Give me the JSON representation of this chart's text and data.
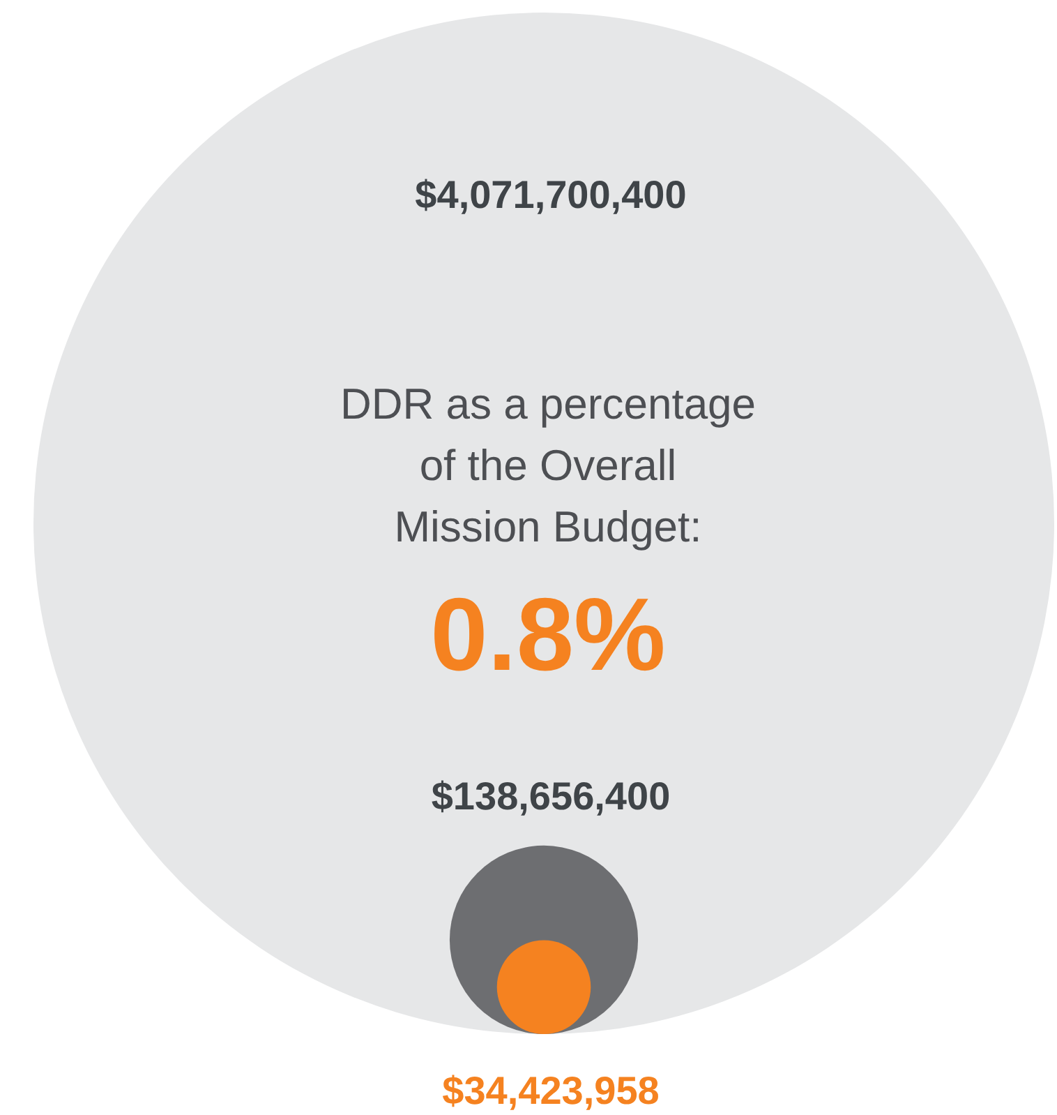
{
  "chart_data": {
    "type": "other",
    "categories": [
      null,
      null,
      null
    ],
    "values": [
      4071700400,
      138656400,
      34423958
    ],
    "colors": [
      "#e6e7e8",
      "#6d6e71",
      "#f58220"
    ],
    "value_labels": [
      "$4,071,700,400",
      "$138,656,400",
      "$34,423,958"
    ],
    "annotations": [
      "DDR as a percentage of the Overall Mission Budget:",
      "0.8%"
    ]
  }
}
